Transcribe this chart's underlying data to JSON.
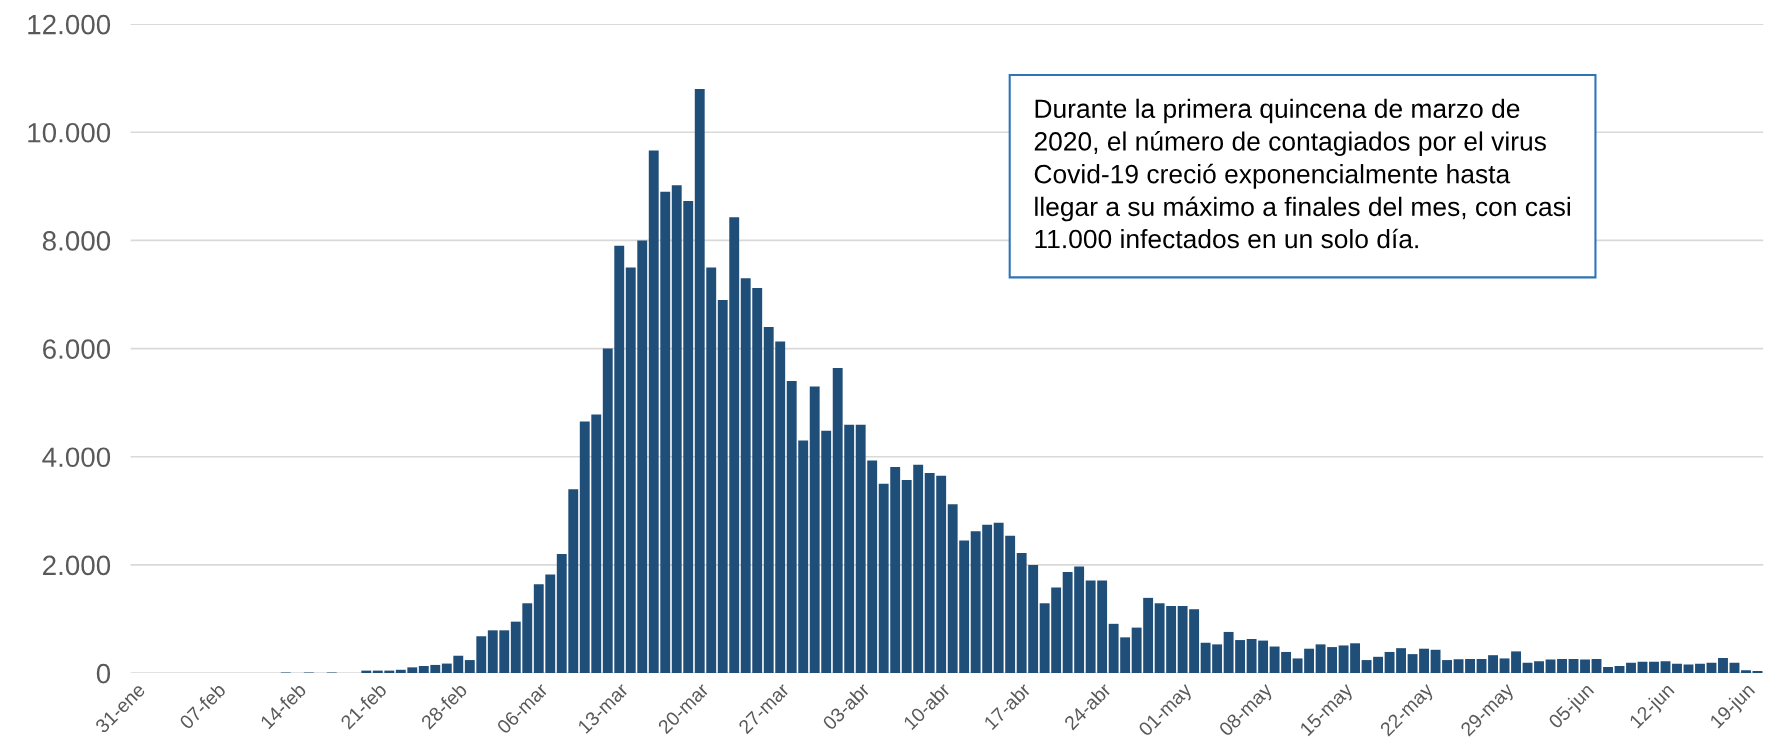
{
  "chart_data": {
    "type": "bar",
    "categories": [
      "31-ene",
      null,
      null,
      null,
      null,
      null,
      null,
      "07-feb",
      null,
      null,
      null,
      null,
      null,
      null,
      "14-feb",
      null,
      null,
      null,
      null,
      null,
      null,
      "21-feb",
      null,
      null,
      null,
      null,
      null,
      null,
      "28-feb",
      null,
      null,
      null,
      null,
      null,
      null,
      "06-mar",
      null,
      null,
      null,
      null,
      null,
      null,
      "13-mar",
      null,
      null,
      null,
      null,
      null,
      null,
      "20-mar",
      null,
      null,
      null,
      null,
      null,
      null,
      "27-mar",
      null,
      null,
      null,
      null,
      null,
      null,
      "03-abr",
      null,
      null,
      null,
      null,
      null,
      null,
      "10-abr",
      null,
      null,
      null,
      null,
      null,
      null,
      "17-abr",
      null,
      null,
      null,
      null,
      null,
      null,
      "24-abr",
      null,
      null,
      null,
      null,
      null,
      null,
      "01-may",
      null,
      null,
      null,
      null,
      null,
      null,
      "08-may",
      null,
      null,
      null,
      null,
      null,
      null,
      "15-may",
      null,
      null,
      null,
      null,
      null,
      null,
      "22-may",
      null,
      null,
      null,
      null,
      null,
      null,
      "29-may",
      null,
      null,
      null,
      null,
      null,
      null,
      "05-jun",
      null,
      null,
      null,
      null,
      null,
      null,
      "12-jun",
      null,
      null,
      null,
      null,
      null,
      null,
      "19-jun",
      null
    ],
    "values": [
      0,
      0,
      0,
      0,
      0,
      0,
      0,
      0,
      0,
      0,
      0,
      0,
      0,
      10,
      0,
      10,
      0,
      10,
      0,
      0,
      45,
      45,
      45,
      60,
      105,
      130,
      150,
      175,
      320,
      240,
      680,
      790,
      790,
      950,
      1290,
      1640,
      1820,
      2200,
      3400,
      4650,
      4780,
      6000,
      7900,
      7500,
      8000,
      9660,
      8900,
      9020,
      8730,
      10800,
      7500,
      6900,
      8430,
      7300,
      7120,
      6400,
      6130,
      5400,
      4300,
      5300,
      4480,
      5640,
      4590,
      4590,
      3930,
      3500,
      3810,
      3570,
      3850,
      3700,
      3650,
      3120,
      2450,
      2620,
      2740,
      2780,
      2540,
      2220,
      2000,
      1290,
      1580,
      1870,
      1970,
      1710,
      1710,
      910,
      660,
      840,
      1390,
      1290,
      1240,
      1240,
      1180,
      560,
      530,
      760,
      610,
      630,
      600,
      490,
      390,
      270,
      450,
      530,
      480,
      510,
      550,
      240,
      300,
      390,
      460,
      350,
      450,
      430,
      240,
      255,
      260,
      260,
      330,
      270,
      400,
      190,
      220,
      250,
      260,
      260,
      250,
      260,
      110,
      130,
      190,
      210,
      210,
      220,
      170,
      160,
      170,
      190,
      280,
      190,
      50,
      40
    ],
    "color": "#1f4e79",
    "ylim": [
      0,
      12000
    ],
    "yticks": [
      {
        "value": 0,
        "label": "0"
      },
      {
        "value": 2000,
        "label": "2.000"
      },
      {
        "value": 4000,
        "label": "4.000"
      },
      {
        "value": 6000,
        "label": "6.000"
      },
      {
        "value": 8000,
        "label": "8.000"
      },
      {
        "value": 10000,
        "label": "10.000"
      },
      {
        "value": 12000,
        "label": "12.000"
      }
    ],
    "grid": "y",
    "annotations": [
      "Durante la primera quincena de marzo de\n2020, el número de contagiados por el virus\nCovid-19 creció exponencialmente hasta\nllegar a su máximo a finales del mes, con casi\n11.000 infectados en un solo día."
    ]
  }
}
